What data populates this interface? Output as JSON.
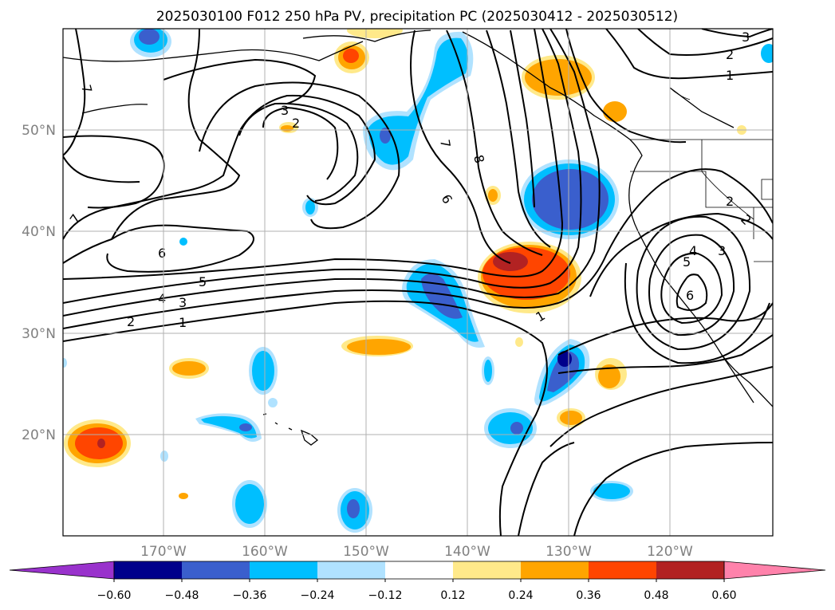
{
  "title": "2025030100 F012 250 hPa PV, precipitation PC (2025030412 - 2025030512)",
  "lat_ticks": [
    "50°N",
    "40°N",
    "30°N",
    "20°N"
  ],
  "lon_ticks": [
    "170°W",
    "160°W",
    "150°W",
    "140°W",
    "130°W",
    "120°W"
  ],
  "contour_labels": [
    "7",
    "3",
    "2",
    "7",
    "8",
    "6",
    "7",
    "6",
    "5",
    "4",
    "3",
    "2",
    "1",
    "1",
    "2",
    "3",
    "4",
    "5",
    "6",
    "3",
    "2",
    "1",
    "2"
  ],
  "colorbar": {
    "ticks": [
      "−0.60",
      "−0.48",
      "−0.36",
      "−0.24",
      "−0.12",
      "0.12",
      "0.24",
      "0.36",
      "0.48",
      "0.60"
    ],
    "colors": [
      "#9932cc",
      "#00008b",
      "#3a5fcd",
      "#00bfff",
      "#b0e2ff",
      "#ffffff",
      "#ffe98a",
      "#ffa500",
      "#ff4500",
      "#b22222",
      "#ff82ab"
    ]
  }
}
